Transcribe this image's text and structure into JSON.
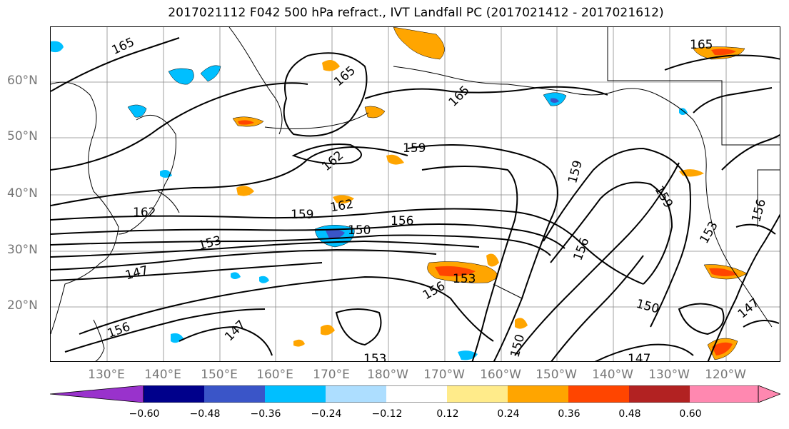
{
  "title": "2017021112 F042 500 hPa refract., IVT Landfall PC (2017021412 - 2017021612)",
  "lat_labels": [
    "60°N",
    "50°N",
    "40°N",
    "30°N",
    "20°N"
  ],
  "lon_labels": [
    "130°E",
    "140°E",
    "150°E",
    "160°E",
    "170°E",
    "180°W",
    "170°W",
    "160°W",
    "150°W",
    "140°W",
    "130°W",
    "120°W"
  ],
  "contour_labels": [
    "165",
    "165",
    "165",
    "165",
    "162",
    "162",
    "162",
    "159",
    "159",
    "159",
    "159",
    "156",
    "156",
    "156",
    "156",
    "156",
    "153",
    "153",
    "153",
    "153",
    "150",
    "150",
    "150",
    "147",
    "147",
    "147",
    "147",
    "147"
  ],
  "colorbar": {
    "tick_labels": [
      "−0.60",
      "−0.48",
      "−0.36",
      "−0.24",
      "−0.12",
      "0.12",
      "0.24",
      "0.36",
      "0.48",
      "0.60"
    ],
    "colors": [
      "#9932CC",
      "#00008B",
      "#3A55C8",
      "#00BFFF",
      "#ADDEFF",
      "#FFFFFF",
      "#FFEB8A",
      "#FFA500",
      "#FF4500",
      "#B22222",
      "#FF88B0"
    ]
  },
  "colors": {
    "contour": "#000000",
    "coast": "#000000",
    "grid": "#888888",
    "axis_label": "#777777"
  }
}
